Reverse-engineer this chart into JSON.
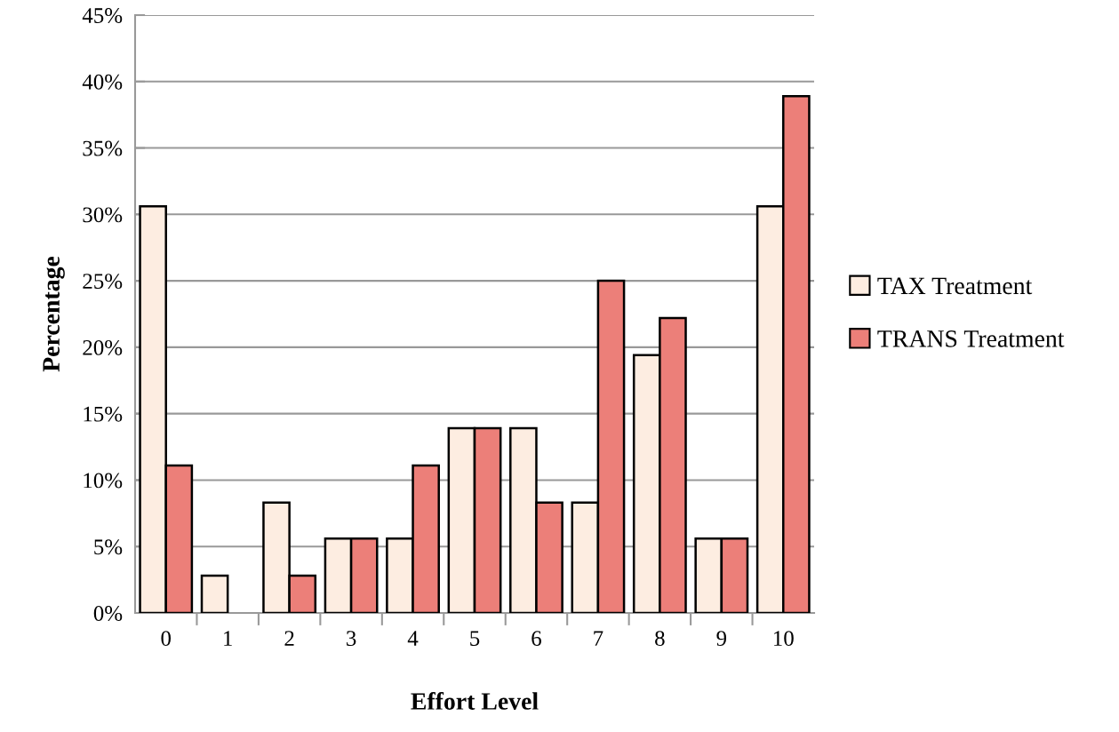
{
  "chart_data": {
    "type": "bar",
    "xlabel": "Effort Level",
    "ylabel": "Percentage",
    "categories": [
      "0",
      "1",
      "2",
      "3",
      "4",
      "5",
      "6",
      "7",
      "8",
      "9",
      "10"
    ],
    "series": [
      {
        "name": "TAX Treatment",
        "color": "#fdede1",
        "values": [
          30.6,
          2.8,
          8.3,
          5.6,
          5.6,
          13.9,
          13.9,
          8.3,
          19.4,
          5.6,
          30.6
        ]
      },
      {
        "name": "TRANS Treatment",
        "color": "#ec7f79",
        "values": [
          11.1,
          0,
          2.8,
          5.6,
          11.1,
          13.9,
          8.3,
          25.0,
          22.2,
          5.6,
          38.9
        ]
      }
    ],
    "ylim": [
      0,
      45
    ],
    "yticks": [
      {
        "value": 0,
        "label": "0%"
      },
      {
        "value": 5,
        "label": "5%"
      },
      {
        "value": 10,
        "label": "10%"
      },
      {
        "value": 15,
        "label": "15%"
      },
      {
        "value": 20,
        "label": "20%"
      },
      {
        "value": 25,
        "label": "25%"
      },
      {
        "value": 30,
        "label": "30%"
      },
      {
        "value": 35,
        "label": "35%"
      },
      {
        "value": 40,
        "label": "40%"
      },
      {
        "value": 45,
        "label": "45%"
      }
    ],
    "grid": "y",
    "legend": "right"
  }
}
